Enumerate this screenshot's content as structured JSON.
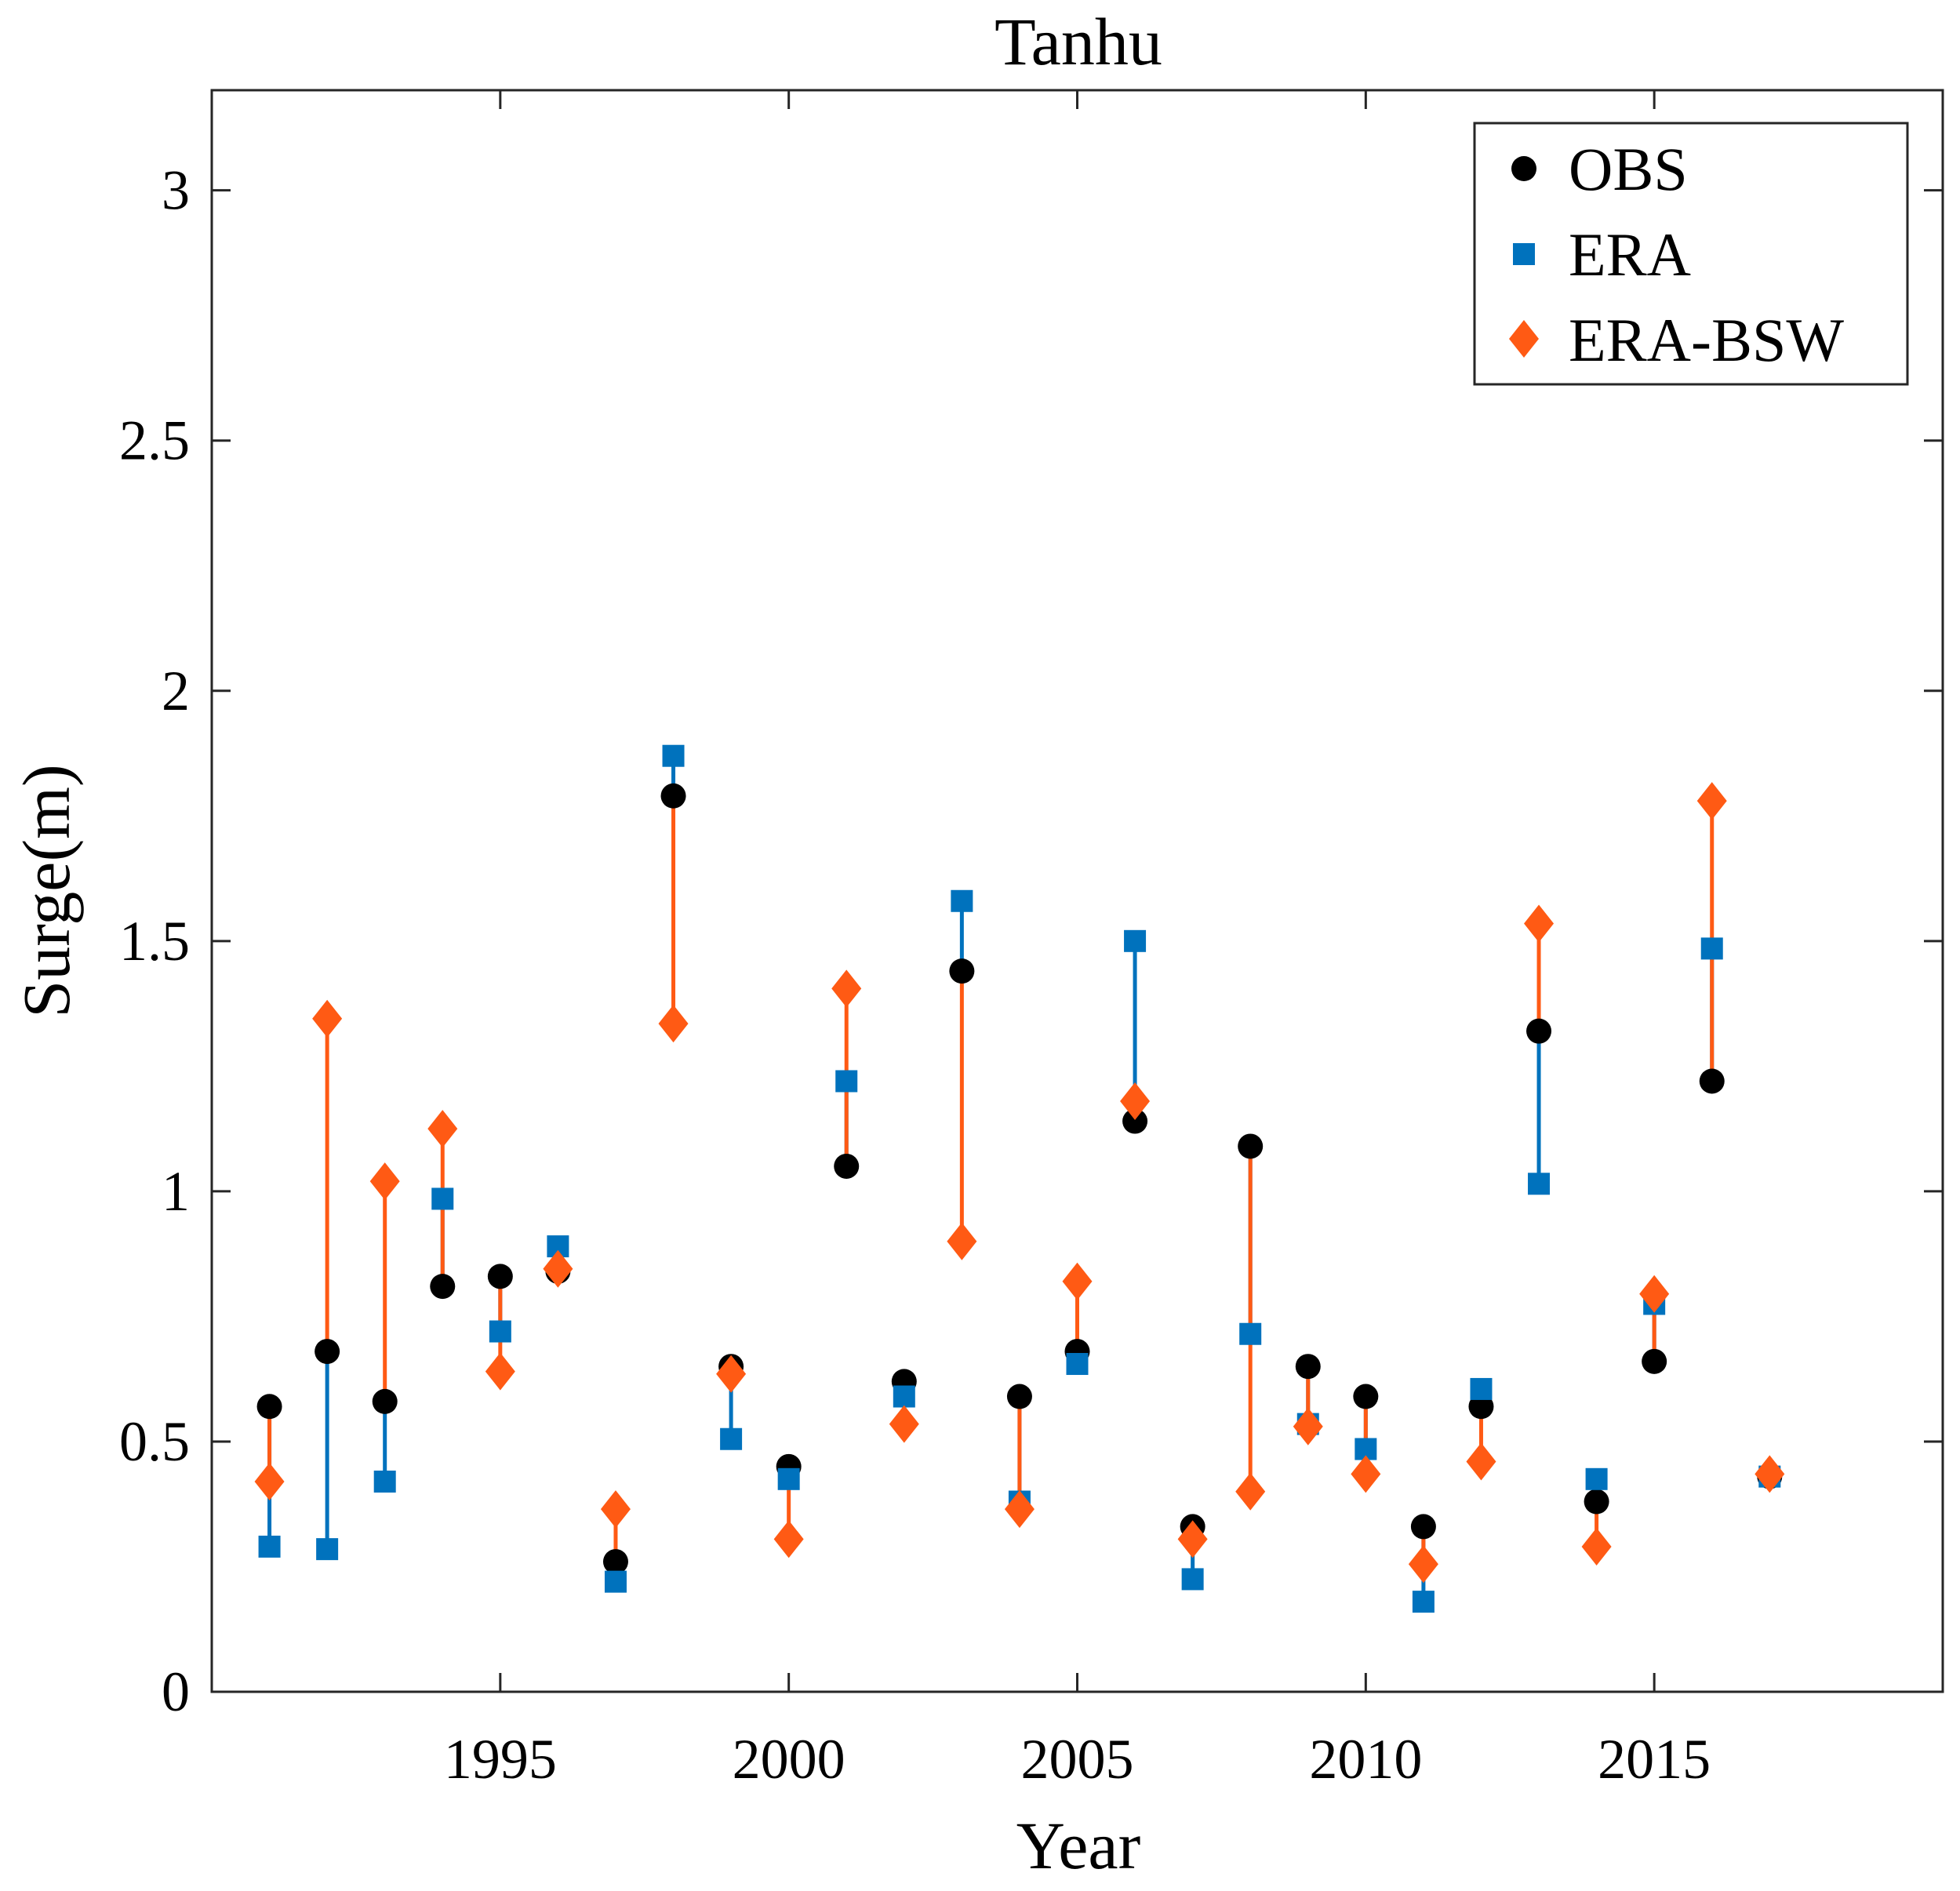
{
  "chart_data": {
    "type": "scatter",
    "title": "Tanhu",
    "xlabel": "Year",
    "ylabel": "Surge(m)",
    "xlim": [
      1990,
      2020
    ],
    "ylim": [
      0,
      3.2
    ],
    "xticks": [
      1995,
      2000,
      2005,
      2010,
      2015
    ],
    "yticks": [
      0,
      0.5,
      1,
      1.5,
      2,
      2.5,
      3
    ],
    "ytick_labels": [
      "0",
      "0.5",
      "1",
      "1.5",
      "2",
      "2.5",
      "3"
    ],
    "grid": false,
    "legend_position": "top-right",
    "x": [
      1991,
      1992,
      1993,
      1994,
      1995,
      1996,
      1997,
      1998,
      1999,
      2000,
      2001,
      2002,
      2003,
      2004,
      2005,
      2006,
      2007,
      2008,
      2009,
      2010,
      2011,
      2012,
      2013,
      2014,
      2015,
      2016,
      2017
    ],
    "series": [
      {
        "name": "OBS",
        "color": "#000000",
        "marker": "circle",
        "values": [
          0.57,
          0.68,
          0.58,
          0.81,
          0.83,
          0.84,
          0.26,
          1.79,
          0.65,
          0.45,
          1.05,
          0.62,
          1.44,
          0.59,
          0.68,
          1.14,
          0.33,
          1.09,
          0.65,
          0.59,
          0.33,
          0.57,
          1.32,
          0.38,
          0.66,
          1.22,
          0.43
        ]
      },
      {
        "name": "ERA",
        "color": "#0072BD",
        "marker": "square",
        "values": [
          0.29,
          0.285,
          0.42,
          0.985,
          0.72,
          0.89,
          0.22,
          1.87,
          0.505,
          0.425,
          1.22,
          0.59,
          1.58,
          0.38,
          0.655,
          1.5,
          0.225,
          0.715,
          0.535,
          0.485,
          0.18,
          0.605,
          1.015,
          0.425,
          0.775,
          1.485,
          0.43
        ]
      },
      {
        "name": "ERA-BSW",
        "color": "#FF5A14",
        "marker": "diamond",
        "values": [
          0.42,
          1.345,
          1.02,
          1.125,
          0.64,
          0.845,
          0.365,
          1.335,
          0.635,
          0.305,
          1.405,
          0.535,
          0.9,
          0.365,
          0.82,
          1.18,
          0.305,
          0.4,
          0.53,
          0.435,
          0.255,
          0.46,
          1.535,
          0.29,
          0.795,
          1.78,
          0.435
        ]
      }
    ]
  }
}
